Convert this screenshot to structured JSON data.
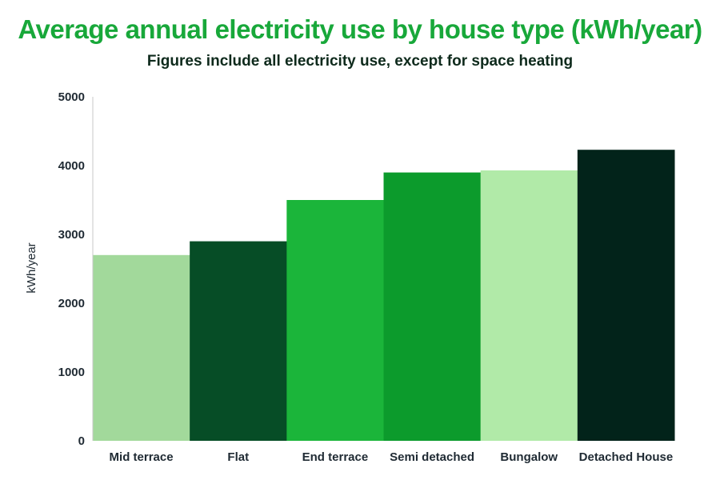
{
  "chart_data": {
    "type": "bar",
    "title": "Average annual electricity use by house type (kWh/year)",
    "subtitle": "Figures include all electricity use, except for space heating",
    "ylabel": "kWh/year",
    "xlabel": "",
    "ylim": [
      0,
      5000
    ],
    "yticks": [
      0,
      1000,
      2000,
      3000,
      4000,
      5000
    ],
    "grid": false,
    "legend": "none",
    "categories": [
      "Mid terrace",
      "Flat",
      "End terrace",
      "Semi detached",
      "Bungalow",
      "Detached House"
    ],
    "values": [
      2700,
      2900,
      3500,
      3900,
      3930,
      4230
    ],
    "colors": [
      "#a2d99b",
      "#064d26",
      "#1bb53a",
      "#0c9b2c",
      "#b1eaa8",
      "#02231a"
    ],
    "title_color": "#18a83a",
    "subtitle_color": "#0e2a1c"
  }
}
